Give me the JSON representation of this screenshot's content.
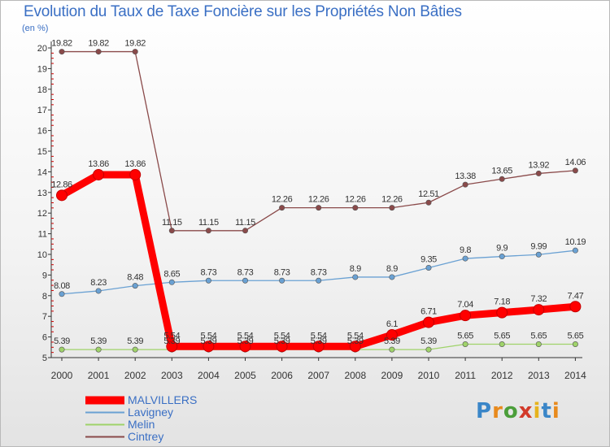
{
  "title": "Evolution du Taux de Taxe Foncière sur les Propriétés Non Bâties",
  "unit": "(en %)",
  "logo": {
    "text": "Proxiti",
    "letter_colors": [
      "#3a86c8",
      "#e88a1d",
      "#4b9e3a",
      "#d23a2a",
      "#e6b31e",
      "#3a86c8",
      "#e88a1d"
    ]
  },
  "colors": {
    "text_accent": "#3a6fc4",
    "axis": "#333333",
    "grid_tick": "#cc0000"
  },
  "chart_data": {
    "type": "line",
    "title": "Evolution du Taux de Taxe Foncière sur les Propriétés Non Bâties",
    "ylabel": "(en %)",
    "xlabel": "",
    "x": [
      "2000",
      "2001",
      "2002",
      "2003",
      "2004",
      "2005",
      "2006",
      "2007",
      "2008",
      "2009",
      "2010",
      "2011",
      "2012",
      "2013",
      "2014"
    ],
    "ylim": [
      5,
      20
    ],
    "yticks": [
      5,
      6,
      7,
      8,
      9,
      10,
      11,
      12,
      13,
      14,
      15,
      16,
      17,
      18,
      19,
      20
    ],
    "legend_position": "bottom-left",
    "series": [
      {
        "name": "MALVILLERS",
        "color": "#ff0000",
        "values": [
          12.86,
          13.86,
          13.86,
          5.54,
          5.54,
          5.54,
          5.54,
          5.54,
          5.54,
          6.1,
          6.71,
          7.04,
          7.18,
          7.32,
          7.47
        ],
        "labels": [
          "12.86",
          "13.86",
          "13.86",
          "5.54",
          "5.54",
          "5.54",
          "5.54",
          "5.54",
          "5.54",
          "6.1",
          "6.71",
          "7.04",
          "7.18",
          "7.32",
          "7.47"
        ]
      },
      {
        "name": "Lavigney",
        "color": "#6aa1d3",
        "values": [
          8.08,
          8.23,
          8.48,
          8.65,
          8.73,
          8.73,
          8.73,
          8.73,
          8.9,
          8.9,
          9.35,
          9.8,
          9.9,
          9.99,
          10.19
        ],
        "labels": [
          "8.08",
          "8.23",
          "8.48",
          "8.65",
          "8.73",
          "8.73",
          "8.73",
          "8.73",
          "8.9",
          "8.9",
          "9.35",
          "9.8",
          "9.9",
          "9.99",
          "10.19"
        ]
      },
      {
        "name": "Melin",
        "color": "#9fd36a",
        "values": [
          5.39,
          5.39,
          5.39,
          5.39,
          5.39,
          5.39,
          5.39,
          5.39,
          5.39,
          5.39,
          5.39,
          5.65,
          5.65,
          5.65,
          5.65
        ],
        "labels": [
          "5.39",
          "5.39",
          "5.39",
          "5.39",
          "5.39",
          "5.39",
          "5.39",
          "5.39",
          "5.39",
          "5.39",
          "5.39",
          "5.65",
          "5.65",
          "5.65",
          "5.65"
        ]
      },
      {
        "name": "Cintrey",
        "color": "#8a4a4a",
        "values": [
          19.82,
          19.82,
          19.82,
          11.15,
          11.15,
          11.15,
          12.26,
          12.26,
          12.26,
          12.26,
          12.51,
          13.38,
          13.65,
          13.92,
          14.06
        ],
        "labels": [
          "19.82",
          "19.82",
          "19.82",
          "11.15",
          "11.15",
          "11.15",
          "12.26",
          "12.26",
          "12.26",
          "12.26",
          "12.51",
          "13.38",
          "13.65",
          "13.92",
          "14.06"
        ]
      }
    ]
  }
}
